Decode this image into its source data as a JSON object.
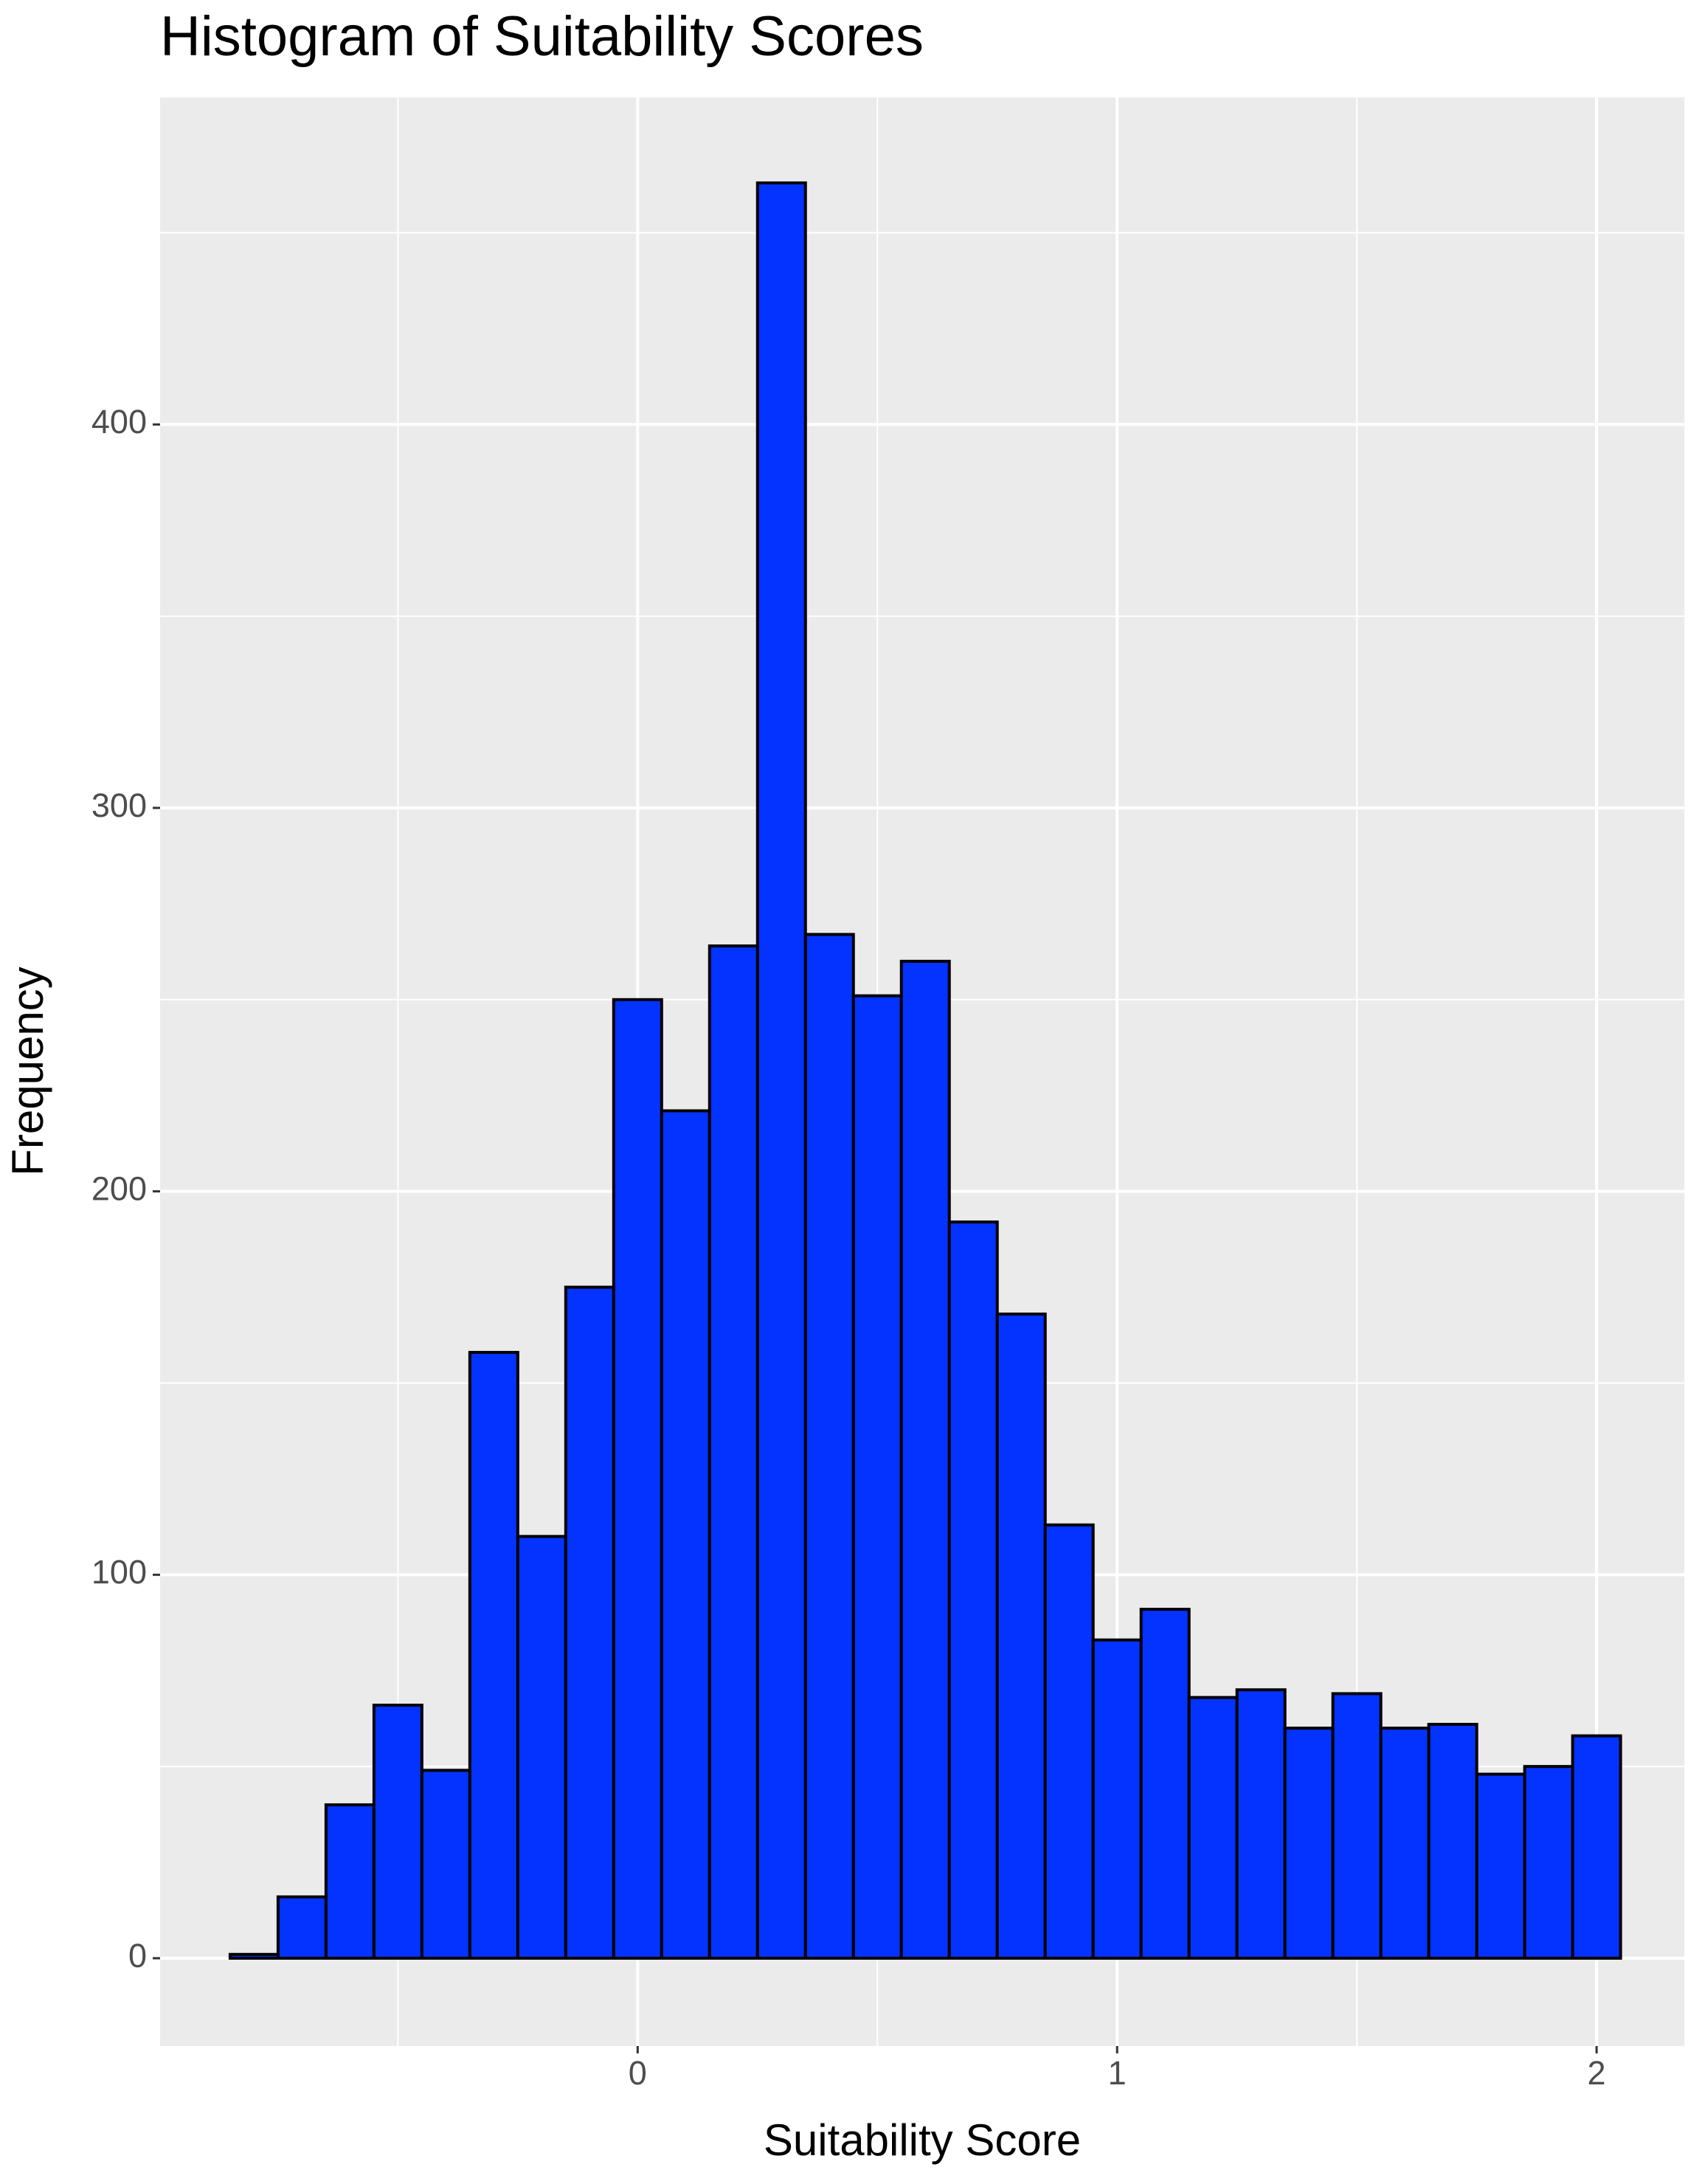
{
  "chart_data": {
    "type": "histogram",
    "title": "Histogram of Suitability Scores",
    "x_label": "Suitability Score",
    "y_label": "Frequency",
    "bins": [
      -0.85,
      -0.75,
      -0.65,
      -0.55,
      -0.45,
      -0.35,
      -0.25,
      -0.15,
      -0.05,
      0.05,
      0.15,
      0.25,
      0.35,
      0.45,
      0.55,
      0.65,
      0.75,
      0.85,
      0.95,
      1.05,
      1.15,
      1.25,
      1.35,
      1.45,
      1.55,
      1.65,
      1.75,
      1.85,
      1.95,
      2.05
    ],
    "values": [
      1,
      16,
      40,
      66,
      49,
      158,
      110,
      175,
      250,
      221,
      264,
      463,
      267,
      251,
      260,
      192,
      168,
      113,
      83,
      91,
      68,
      70,
      60,
      69,
      60,
      61,
      48,
      50,
      58
    ],
    "color": "#0433ff",
    "edge_color": "#000000",
    "xlim": [
      -0.996,
      2.183
    ],
    "ylim": [
      -22.9,
      485.3
    ],
    "xticks": [
      0,
      1,
      2
    ],
    "yticks": [
      0,
      100,
      200,
      300,
      400
    ],
    "minor_xticks": [
      -0.5,
      0.5,
      1.5
    ],
    "minor_yticks": [
      50,
      150,
      250,
      350,
      450
    ],
    "grid": true
  }
}
